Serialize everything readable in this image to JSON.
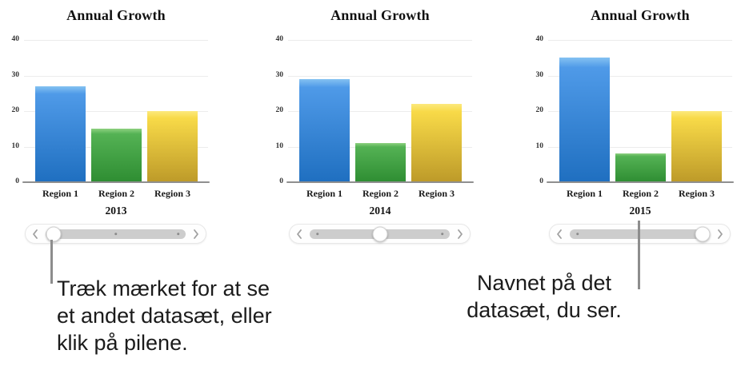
{
  "figure": {
    "background": "#ffffff"
  },
  "chart_data": [
    {
      "type": "bar",
      "title": "Annual Growth",
      "categories": [
        "Region 1",
        "Region 2",
        "Region 3"
      ],
      "values": [
        27,
        15,
        20
      ],
      "xlabel": "2013",
      "ylabel": "",
      "ylim": [
        0,
        40
      ],
      "yticks": [
        0,
        10,
        20,
        30,
        40
      ],
      "grid": true,
      "legend_position": "none"
    },
    {
      "type": "bar",
      "title": "Annual Growth",
      "categories": [
        "Region 1",
        "Region 2",
        "Region 3"
      ],
      "values": [
        29,
        11,
        22
      ],
      "xlabel": "2014",
      "ylabel": "",
      "ylim": [
        0,
        40
      ],
      "yticks": [
        0,
        10,
        20,
        30,
        40
      ],
      "grid": true,
      "legend_position": "none"
    },
    {
      "type": "bar",
      "title": "Annual Growth",
      "categories": [
        "Region 1",
        "Region 2",
        "Region 3"
      ],
      "values": [
        35,
        8,
        20
      ],
      "xlabel": "2015",
      "ylabel": "",
      "ylim": [
        0,
        40
      ],
      "yticks": [
        0,
        10,
        20,
        30,
        40
      ],
      "grid": true,
      "legend_position": "none"
    }
  ],
  "axis": {
    "yticks": [
      40,
      30,
      20,
      10,
      0
    ]
  },
  "charts": [
    {
      "title": "Annual Growth",
      "year": "2013",
      "categories": [
        "Region 1",
        "Region 2",
        "Region 3"
      ],
      "values": [
        27,
        15,
        20
      ],
      "slider": {
        "thumb": "left",
        "dots": [
          "middle",
          "right"
        ]
      }
    },
    {
      "title": "Annual Growth",
      "year": "2014",
      "categories": [
        "Region 1",
        "Region 2",
        "Region 3"
      ],
      "values": [
        29,
        11,
        22
      ],
      "slider": {
        "thumb": "middle",
        "dots": [
          "left",
          "right"
        ]
      }
    },
    {
      "title": "Annual Growth",
      "year": "2015",
      "categories": [
        "Region 1",
        "Region 2",
        "Region 3"
      ],
      "values": [
        35,
        8,
        20
      ],
      "slider": {
        "thumb": "right",
        "dots": [
          "left"
        ]
      }
    }
  ],
  "annotations": {
    "left_note": "Træk mærket for at se\net andet datasæt, eller\nklik på pilene.",
    "right_note": "Navnet på det\ndatasæt, du ser."
  },
  "colors": {
    "bar_series": [
      {
        "name": "blue",
        "top": "#85c2f2",
        "bottom": "#1f6fc0"
      },
      {
        "name": "green",
        "top": "#8ed180",
        "bottom": "#2e8d32"
      },
      {
        "name": "yellow",
        "top": "#fce97d",
        "bottom": "#bd9a29"
      }
    ],
    "grid_line": "#ececec",
    "axis_line": "#8f8f8f",
    "callout_line": "#8d8d8d",
    "slider_track": "#cdcdcd"
  }
}
